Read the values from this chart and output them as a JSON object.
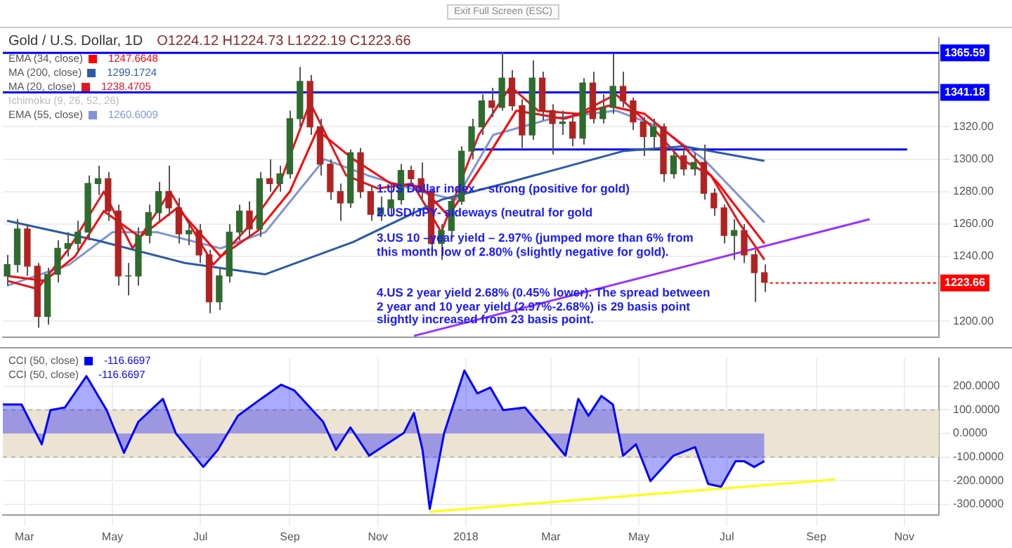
{
  "chart_data": [
    {
      "type": "candlestick",
      "title": "Gold / U.S. Dollar, 1D",
      "subtitle": "O1224.12 H1224.73 L1222.19 C1223.66",
      "xlim": [
        "2017-02-14",
        "2018-11-25"
      ],
      "xticks": [
        {
          "value": "2017-03-01",
          "label": null
        },
        {
          "value": "2017-05-01",
          "label": null
        },
        {
          "value": "2017-07-01",
          "label": null
        },
        {
          "value": "2017-09-01",
          "label": null
        },
        {
          "value": "2017-11-01",
          "label": null
        },
        {
          "value": "2018-01-01",
          "label": null
        },
        {
          "value": "2018-03-01",
          "label": null
        },
        {
          "value": "2018-05-01",
          "label": null
        },
        {
          "value": "2018-07-01",
          "label": null
        },
        {
          "value": "2018-09-01",
          "label": null
        },
        {
          "value": "2018-11-01",
          "label": null
        }
      ],
      "ylim": [
        1190,
        1375
      ],
      "yticks": [
        {
          "value": 1200,
          "label": "1200.00"
        },
        {
          "value": 1240,
          "label": "1240.00"
        },
        {
          "value": 1260,
          "label": "1260.00"
        },
        {
          "value": 1280,
          "label": "1280.00"
        },
        {
          "value": 1300,
          "label": "1300.00"
        },
        {
          "value": 1320,
          "label": "1320.00"
        }
      ],
      "tick_labels": "y",
      "grid": true,
      "legend": "top left",
      "marker": "none",
      "line_style": "solid",
      "series": [
        {
          "x": [
            "2017-02-17",
            "2017-02-24",
            "2017-03-03",
            "2017-03-10",
            "2017-03-17",
            "2017-03-24",
            "2017-03-31",
            "2017-04-07",
            "2017-04-14",
            "2017-04-21",
            "2017-04-28",
            "2017-05-05",
            "2017-05-12",
            "2017-05-19",
            "2017-05-26",
            "2017-06-02",
            "2017-06-09",
            "2017-06-16",
            "2017-06-23",
            "2017-06-30",
            "2017-07-07",
            "2017-07-14",
            "2017-07-21",
            "2017-07-28",
            "2017-08-04",
            "2017-08-11",
            "2017-08-18",
            "2017-08-25",
            "2017-09-01",
            "2017-09-08",
            "2017-09-15",
            "2017-09-22",
            "2017-09-29",
            "2017-10-06",
            "2017-10-13",
            "2017-10-20",
            "2017-10-27",
            "2017-11-03",
            "2017-11-10",
            "2017-11-17",
            "2017-11-24",
            "2017-12-01",
            "2017-12-08",
            "2017-12-15",
            "2017-12-22",
            "2017-12-29",
            "2018-01-05",
            "2018-01-12",
            "2018-01-19",
            "2018-01-26",
            "2018-02-02",
            "2018-02-09",
            "2018-02-16",
            "2018-02-23",
            "2018-03-02",
            "2018-03-09",
            "2018-03-16",
            "2018-03-23",
            "2018-03-30",
            "2018-04-06",
            "2018-04-13",
            "2018-04-20",
            "2018-04-27",
            "2018-05-04",
            "2018-05-11",
            "2018-05-18",
            "2018-05-25",
            "2018-06-01",
            "2018-06-08",
            "2018-06-15",
            "2018-06-22",
            "2018-06-29",
            "2018-07-06",
            "2018-07-13",
            "2018-07-20",
            "2018-07-27"
          ],
          "ohlc": [
            [
              1228,
              1241,
              1222,
              1235
            ],
            [
              1235,
              1263,
              1230,
              1257
            ],
            [
              1257,
              1260,
              1228,
              1234
            ],
            [
              1234,
              1236,
              1196,
              1203
            ],
            [
              1203,
              1233,
              1198,
              1229
            ],
            [
              1229,
              1250,
              1224,
              1245
            ],
            [
              1245,
              1255,
              1240,
              1248
            ],
            [
              1248,
              1262,
              1242,
              1255
            ],
            [
              1255,
              1290,
              1250,
              1285
            ],
            [
              1285,
              1296,
              1278,
              1288
            ],
            [
              1288,
              1292,
              1262,
              1268
            ],
            [
              1268,
              1272,
              1222,
              1228
            ],
            [
              1228,
              1236,
              1216,
              1228
            ],
            [
              1228,
              1258,
              1222,
              1253
            ],
            [
              1253,
              1272,
              1248,
              1267
            ],
            [
              1267,
              1286,
              1262,
              1280
            ],
            [
              1280,
              1296,
              1265,
              1270
            ],
            [
              1270,
              1276,
              1248,
              1254
            ],
            [
              1254,
              1262,
              1247,
              1256
            ],
            [
              1256,
              1260,
              1236,
              1241
            ],
            [
              1241,
              1244,
              1205,
              1212
            ],
            [
              1212,
              1233,
              1207,
              1228
            ],
            [
              1228,
              1260,
              1224,
              1255
            ],
            [
              1255,
              1272,
              1250,
              1268
            ],
            [
              1268,
              1274,
              1252,
              1257
            ],
            [
              1257,
              1292,
              1252,
              1288
            ],
            [
              1288,
              1300,
              1280,
              1285
            ],
            [
              1285,
              1296,
              1280,
              1291
            ],
            [
              1291,
              1330,
              1288,
              1325
            ],
            [
              1325,
              1357,
              1320,
              1348
            ],
            [
              1348,
              1352,
              1315,
              1320
            ],
            [
              1320,
              1325,
              1290,
              1297
            ],
            [
              1297,
              1300,
              1275,
              1280
            ],
            [
              1280,
              1285,
              1262,
              1273
            ],
            [
              1273,
              1306,
              1270,
              1304
            ],
            [
              1304,
              1307,
              1276,
              1280
            ],
            [
              1280,
              1284,
              1262,
              1266
            ],
            [
              1266,
              1277,
              1262,
              1270
            ],
            [
              1270,
              1285,
              1265,
              1275
            ],
            [
              1275,
              1297,
              1272,
              1293
            ],
            [
              1293,
              1296,
              1284,
              1288
            ],
            [
              1288,
              1298,
              1275,
              1280
            ],
            [
              1280,
              1282,
              1244,
              1248
            ],
            [
              1248,
              1260,
              1238,
              1256
            ],
            [
              1256,
              1277,
              1252,
              1274
            ],
            [
              1274,
              1308,
              1272,
              1305
            ],
            [
              1305,
              1325,
              1300,
              1320
            ],
            [
              1320,
              1340,
              1315,
              1336
            ],
            [
              1336,
              1344,
              1326,
              1332
            ],
            [
              1332,
              1366,
              1330,
              1350
            ],
            [
              1350,
              1355,
              1330,
              1333
            ],
            [
              1333,
              1337,
              1307,
              1315
            ],
            [
              1315,
              1361,
              1312,
              1350
            ],
            [
              1350,
              1354,
              1324,
              1330
            ],
            [
              1330,
              1334,
              1303,
              1322
            ],
            [
              1322,
              1330,
              1315,
              1323
            ],
            [
              1323,
              1328,
              1308,
              1313
            ],
            [
              1313,
              1350,
              1309,
              1347
            ],
            [
              1347,
              1354,
              1322,
              1325
            ],
            [
              1325,
              1340,
              1322,
              1332
            ],
            [
              1332,
              1365,
              1328,
              1345
            ],
            [
              1345,
              1354,
              1332,
              1336
            ],
            [
              1336,
              1338,
              1318,
              1323
            ],
            [
              1323,
              1326,
              1302,
              1314
            ],
            [
              1314,
              1325,
              1306,
              1320
            ],
            [
              1320,
              1322,
              1286,
              1291
            ],
            [
              1291,
              1306,
              1288,
              1302
            ],
            [
              1302,
              1306,
              1290,
              1294
            ],
            [
              1294,
              1304,
              1290,
              1298
            ],
            [
              1298,
              1309,
              1275,
              1279
            ],
            [
              1279,
              1282,
              1265,
              1270
            ],
            [
              1270,
              1272,
              1248,
              1253
            ],
            [
              1253,
              1263,
              1238,
              1256
            ],
            [
              1256,
              1260,
              1236,
              1241
            ],
            [
              1241,
              1244,
              1212,
              1230
            ],
            [
              1230,
              1235,
              1218,
              1224
            ]
          ]
        },
        {
          "type": "line",
          "name": "EMA (34, close)",
          "color": "#ff0000",
          "x": [
            "2017-02-17",
            "2017-03-15",
            "2017-04-05",
            "2017-04-25",
            "2017-05-20",
            "2017-06-15",
            "2017-07-15",
            "2017-08-10",
            "2017-09-01",
            "2017-09-20",
            "2017-10-15",
            "2017-11-10",
            "2017-12-01",
            "2017-12-20",
            "2018-01-15",
            "2018-02-05",
            "2018-03-10",
            "2018-04-10",
            "2018-05-05",
            "2018-06-01",
            "2018-06-25",
            "2018-07-27"
          ],
          "values": [
            1228,
            1225,
            1240,
            1268,
            1252,
            1270,
            1240,
            1256,
            1280,
            1318,
            1300,
            1285,
            1283,
            1265,
            1300,
            1330,
            1325,
            1333,
            1328,
            1308,
            1285,
            1248
          ]
        },
        {
          "type": "line",
          "name": "MA (200, close)",
          "color": "#2b5aa8",
          "x": [
            "2017-02-17",
            "2017-04-20",
            "2017-06-20",
            "2017-08-15",
            "2017-10-15",
            "2017-12-15",
            "2018-02-01",
            "2018-04-20",
            "2018-06-01",
            "2018-07-27"
          ],
          "values": [
            1262,
            1250,
            1236,
            1229,
            1249,
            1275,
            1286,
            1305,
            1308,
            1299
          ]
        },
        {
          "type": "line",
          "name": "MA (20, close)",
          "color": "#e8141b",
          "x": [
            "2017-02-17",
            "2017-03-10",
            "2017-04-01",
            "2017-04-25",
            "2017-05-15",
            "2017-06-10",
            "2017-07-10",
            "2017-08-05",
            "2017-08-25",
            "2017-09-15",
            "2017-10-10",
            "2017-11-01",
            "2017-11-25",
            "2017-12-15",
            "2018-01-10",
            "2018-02-01",
            "2018-02-20",
            "2018-03-20",
            "2018-04-15",
            "2018-05-10",
            "2018-05-30",
            "2018-06-20",
            "2018-07-10",
            "2018-07-27"
          ],
          "values": [
            1225,
            1220,
            1245,
            1280,
            1245,
            1280,
            1235,
            1260,
            1285,
            1335,
            1290,
            1282,
            1285,
            1255,
            1315,
            1345,
            1330,
            1328,
            1340,
            1320,
            1300,
            1290,
            1260,
            1238
          ]
        },
        {
          "type": "line",
          "name": "EMA (55, close)",
          "color": "#7f95d4",
          "x": [
            "2017-02-17",
            "2017-04-01",
            "2017-05-01",
            "2017-06-01",
            "2017-07-15",
            "2017-08-15",
            "2017-09-25",
            "2017-10-25",
            "2017-12-01",
            "2017-12-25",
            "2018-01-20",
            "2018-03-01",
            "2018-04-15",
            "2018-05-15",
            "2018-06-15",
            "2018-07-27"
          ],
          "values": [
            1222,
            1235,
            1255,
            1255,
            1245,
            1255,
            1300,
            1290,
            1280,
            1275,
            1315,
            1325,
            1330,
            1320,
            1300,
            1261
          ]
        },
        {
          "type": "line",
          "color": "#0000ff",
          "x": [
            "2018-01-04",
            "2018-11-03"
          ],
          "values": [
            1306,
            1306
          ]
        },
        {
          "type": "line",
          "color": "#9b30ff",
          "x": [
            "2017-11-26",
            "2018-10-08"
          ],
          "values": [
            1191,
            1263
          ]
        }
      ],
      "ref_lines": [
        {
          "axis": "y",
          "value": 1365.59,
          "label": "1365.59",
          "color": "#0000ff"
        },
        {
          "axis": "y",
          "value": 1341.18,
          "label": "1341.18",
          "color": "#0000ff"
        }
      ],
      "annotations": [
        "1247.6648",
        "1299.1724",
        "1238.4705",
        "1260.6009",
        "Exit Full Screen (ESC)",
        "Ichimoku (9, 26, 52, 26)",
        "1.US Dollar index – strong (positive for gold)",
        "2.USD/JPY- sideways (neutral for gold",
        "3.US 10 –year yield – 2.97% (jumped more than 6% from this month low of 2.80% (slightly negative for gold).",
        "4.US 2 year yield 2.68% (0.45% lower). The spread between 2 year and 10 year yield (2.97%-2.68%) is 29 basis point slightly increased from 23 basis point.",
        {
          "text": "1223.66",
          "x": "2018-07-27",
          "y": 1223.66
        }
      ]
    },
    {
      "type": "area",
      "xlim": [
        "2017-02-14",
        "2018-11-25"
      ],
      "xticks": [
        {
          "value": "2017-03-01",
          "label": "Mar"
        },
        {
          "value": "2017-05-01",
          "label": "May"
        },
        {
          "value": "2017-07-01",
          "label": "Jul"
        },
        {
          "value": "2017-09-01",
          "label": "Sep"
        },
        {
          "value": "2017-11-01",
          "label": "Nov"
        },
        {
          "value": "2018-01-01",
          "label": "2018"
        },
        {
          "value": "2018-03-01",
          "label": "Mar"
        },
        {
          "value": "2018-05-01",
          "label": "May"
        },
        {
          "value": "2018-07-01",
          "label": "Jul"
        },
        {
          "value": "2018-09-01",
          "label": "Sep"
        },
        {
          "value": "2018-11-01",
          "label": "Nov"
        }
      ],
      "ylim": [
        -345,
        320
      ],
      "yticks": [
        {
          "value": -300,
          "label": "-300.0000"
        },
        {
          "value": -200,
          "label": "-200.0000"
        },
        {
          "value": -100,
          "label": "-100.0000"
        },
        {
          "value": 0,
          "label": "0.0000"
        },
        {
          "value": 100,
          "label": "100.0000"
        },
        {
          "value": 200,
          "label": "200.0000"
        }
      ],
      "grid": true,
      "legend": "top left",
      "marker": "none",
      "line_style": "solid",
      "series": [
        {
          "name": "CCI (50, close)",
          "color": "#0000ff",
          "x": [
            "2017-02-14",
            "2017-02-27",
            "2017-03-13",
            "2017-03-19",
            "2017-03-29",
            "2017-04-13",
            "2017-04-27",
            "2017-05-09",
            "2017-05-19",
            "2017-06-05",
            "2017-06-14",
            "2017-07-03",
            "2017-07-13",
            "2017-07-27",
            "2017-08-12",
            "2017-08-26",
            "2017-09-04",
            "2017-09-24",
            "2017-10-03",
            "2017-10-13",
            "2017-10-26",
            "2017-11-19",
            "2017-11-26",
            "2017-12-02",
            "2017-12-07",
            "2017-12-17",
            "2017-12-31",
            "2018-01-09",
            "2018-01-18",
            "2018-01-27",
            "2018-02-11",
            "2018-02-26",
            "2018-03-11",
            "2018-03-20",
            "2018-03-27",
            "2018-04-05",
            "2018-04-13",
            "2018-04-20",
            "2018-04-29",
            "2018-05-09",
            "2018-05-25",
            "2018-06-09",
            "2018-06-18",
            "2018-06-27",
            "2018-07-07",
            "2018-07-13",
            "2018-07-20",
            "2018-07-27"
          ],
          "values": [
            123,
            123,
            -46,
            99,
            110,
            243,
            99,
            -82,
            50,
            147,
            0,
            -142,
            -70,
            75,
            147,
            207,
            183,
            50,
            -70,
            26,
            -94,
            2,
            87,
            -70,
            -320,
            2,
            267,
            170,
            195,
            99,
            110,
            2,
            -94,
            147,
            75,
            159,
            123,
            -94,
            -46,
            -202,
            -94,
            -58,
            -214,
            -226,
            -118,
            -118,
            -142,
            -117
          ]
        },
        {
          "type": "line",
          "color": "#ffff00",
          "x": [
            "2017-12-07",
            "2018-09-14"
          ],
          "values": [
            -332,
            -195
          ]
        }
      ],
      "bands": [
        {
          "axis": "y",
          "from": -100,
          "to": 100,
          "color": "#ece3d2"
        }
      ],
      "annotations": [
        "-116.6697",
        "CCI (50, close)",
        "-116.6697"
      ]
    }
  ]
}
